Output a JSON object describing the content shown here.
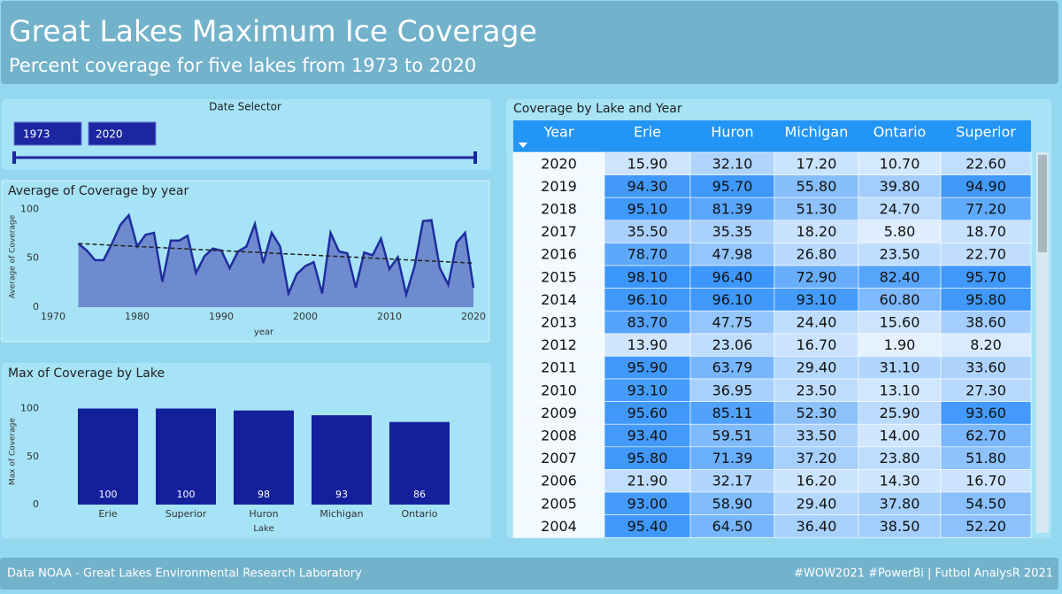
{
  "header": {
    "title": "Great Lakes Maximum Ice Coverage",
    "subtitle": "Percent coverage for five lakes from 1973 to 2020"
  },
  "date_selector": {
    "title": "Date Selector",
    "start": 1973,
    "end": 2020
  },
  "chart_data": [
    {
      "type": "line",
      "title": "Average of Coverage by year",
      "x_label": "year",
      "y_label": "Average of Coverage",
      "x": [
        1973,
        1974,
        1975,
        1976,
        1977,
        1978,
        1979,
        1980,
        1981,
        1982,
        1983,
        1984,
        1985,
        1986,
        1987,
        1988,
        1989,
        1990,
        1991,
        1992,
        1993,
        1994,
        1995,
        1996,
        1997,
        1998,
        1999,
        2000,
        2001,
        2002,
        2003,
        2004,
        2005,
        2006,
        2007,
        2008,
        2009,
        2010,
        2011,
        2012,
        2013,
        2014,
        2015,
        2016,
        2017,
        2018,
        2019,
        2020
      ],
      "values": [
        65,
        58,
        48,
        48,
        65,
        84,
        94,
        62,
        74,
        76,
        26,
        68,
        68,
        73,
        35,
        52,
        60,
        58,
        40,
        57,
        62,
        85,
        45,
        76,
        62,
        14,
        34,
        42,
        46,
        14,
        76,
        57,
        55,
        20,
        56,
        53,
        70,
        39,
        51,
        13,
        42,
        88,
        89,
        40,
        23,
        66,
        76,
        20
      ],
      "color": "#1f2d9e",
      "fill": "#6f8bcf",
      "xlim": [
        1970,
        2020
      ],
      "ylim": [
        0,
        104
      ],
      "xticks": [
        1970,
        1980,
        1990,
        2000,
        2010,
        2020
      ],
      "yticks": [
        0,
        50,
        100
      ],
      "trendline": {
        "x": [
          1973,
          2020
        ],
        "values": [
          65,
          45
        ]
      }
    },
    {
      "type": "bar",
      "title": "Max of Coverage by Lake",
      "x_label": "Lake",
      "y_label": "Max of Coverage",
      "categories": [
        "Erie",
        "Superior",
        "Huron",
        "Michigan",
        "Ontario"
      ],
      "values": [
        100,
        100,
        98,
        93,
        86
      ],
      "color": "#141f9c",
      "ylim": [
        0,
        106
      ],
      "yticks": [
        0,
        50,
        100
      ]
    }
  ],
  "table": {
    "title": "Coverage by Lake and Year",
    "columns": [
      "Year",
      "Erie",
      "Huron",
      "Michigan",
      "Ontario",
      "Superior"
    ],
    "rows": [
      [
        "2020",
        "15.90",
        "32.10",
        "17.20",
        "10.70",
        "22.60"
      ],
      [
        "2019",
        "94.30",
        "95.70",
        "55.80",
        "39.80",
        "94.90"
      ],
      [
        "2018",
        "95.10",
        "81.39",
        "51.30",
        "24.70",
        "77.20"
      ],
      [
        "2017",
        "35.50",
        "35.35",
        "18.20",
        "5.80",
        "18.70"
      ],
      [
        "2016",
        "78.70",
        "47.98",
        "26.80",
        "23.50",
        "22.70"
      ],
      [
        "2015",
        "98.10",
        "96.40",
        "72.90",
        "82.40",
        "95.70"
      ],
      [
        "2014",
        "96.10",
        "96.10",
        "93.10",
        "60.80",
        "95.80"
      ],
      [
        "2013",
        "83.70",
        "47.75",
        "24.40",
        "15.60",
        "38.60"
      ],
      [
        "2012",
        "13.90",
        "23.06",
        "16.70",
        "1.90",
        "8.20"
      ],
      [
        "2011",
        "95.90",
        "63.79",
        "29.40",
        "31.10",
        "33.60"
      ],
      [
        "2010",
        "93.10",
        "36.95",
        "23.50",
        "13.10",
        "27.30"
      ],
      [
        "2009",
        "95.60",
        "85.11",
        "52.30",
        "25.90",
        "93.60"
      ],
      [
        "2008",
        "93.40",
        "59.51",
        "33.50",
        "14.00",
        "62.70"
      ],
      [
        "2007",
        "95.80",
        "71.39",
        "37.20",
        "23.80",
        "51.80"
      ],
      [
        "2006",
        "21.90",
        "32.17",
        "16.20",
        "14.30",
        "16.70"
      ],
      [
        "2005",
        "93.00",
        "58.90",
        "29.40",
        "37.80",
        "54.50"
      ],
      [
        "2004",
        "95.40",
        "64.50",
        "36.40",
        "38.50",
        "52.20"
      ]
    ]
  },
  "footer": {
    "left": "Data NOAA - Great Lakes Environmental Research Laboratory",
    "right": "#WOW2021 #PowerBi | Futbol AnalysR 2021"
  }
}
